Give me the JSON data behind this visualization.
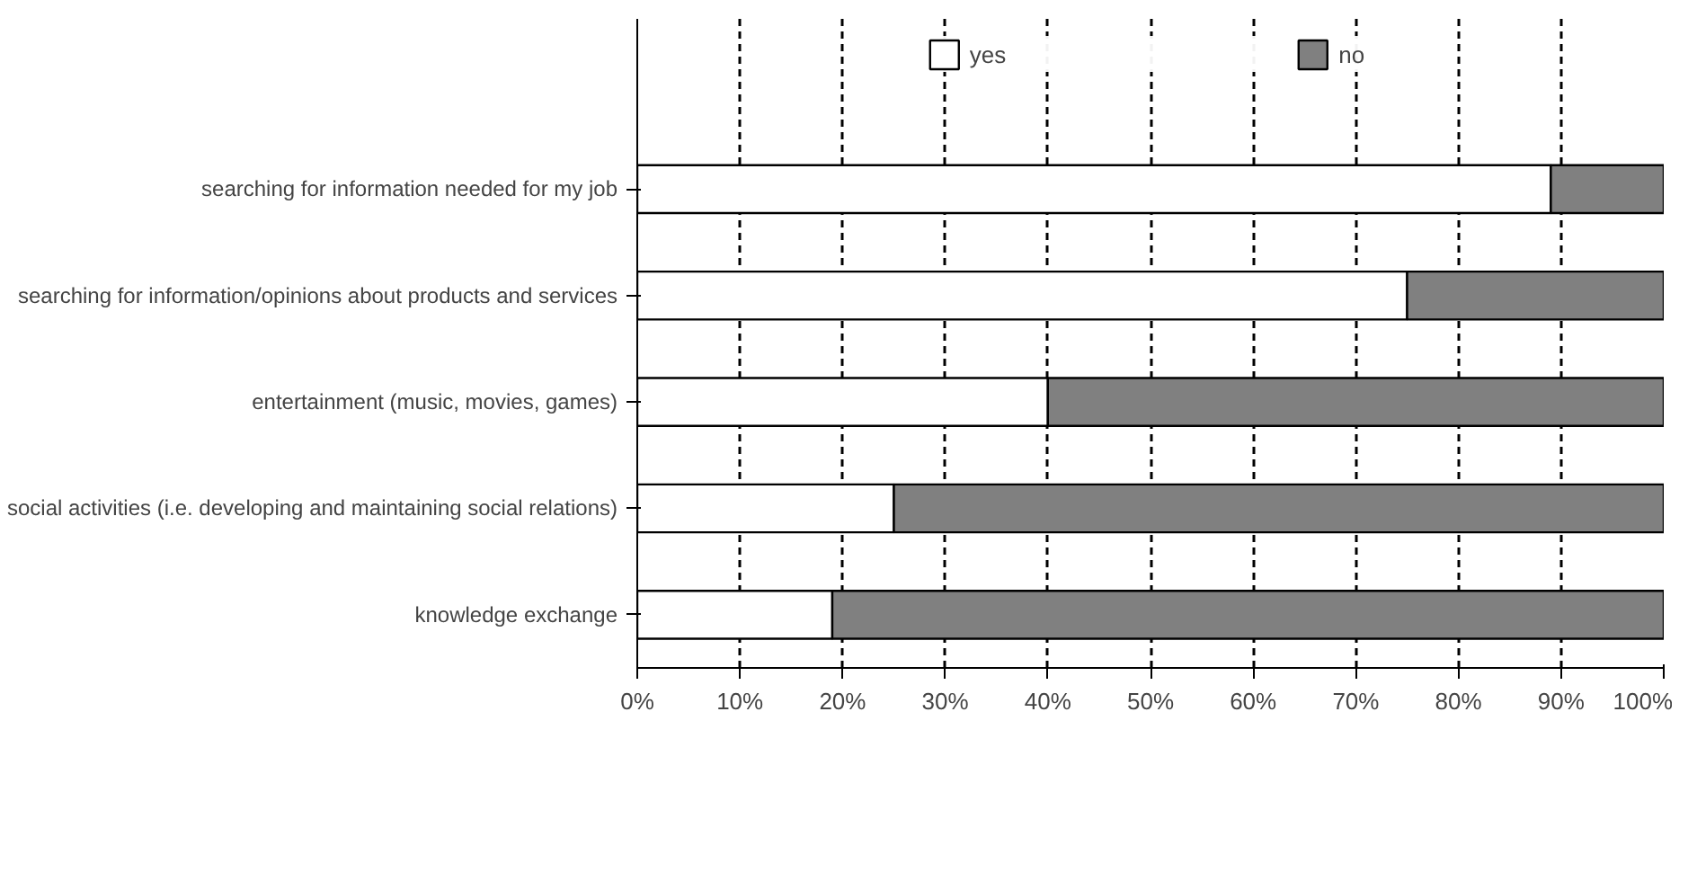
{
  "chart_data": {
    "type": "bar",
    "orientation": "horizontal",
    "stacked": true,
    "categories": [
      "searching for information needed for my job",
      "searching for information/opinions about products and services",
      "entertainment (music, movies, games)",
      "social activities (i.e. developing and maintaining social relations)",
      "knowledge exchange"
    ],
    "series": [
      {
        "name": "yes",
        "color": "#ffffff",
        "values": [
          89,
          75,
          40,
          25,
          19
        ]
      },
      {
        "name": "no",
        "color": "#808080",
        "values": [
          11,
          25,
          60,
          75,
          81
        ]
      }
    ],
    "xlim": [
      0,
      100
    ],
    "xticks": [
      {
        "value": 0,
        "label": "0%"
      },
      {
        "value": 10,
        "label": "10%"
      },
      {
        "value": 20,
        "label": "20%"
      },
      {
        "value": 30,
        "label": "30%"
      },
      {
        "value": 40,
        "label": "40%"
      },
      {
        "value": 50,
        "label": "50%"
      },
      {
        "value": 60,
        "label": "60%"
      },
      {
        "value": 70,
        "label": "70%"
      },
      {
        "value": 80,
        "label": "80%"
      },
      {
        "value": 90,
        "label": "90%"
      },
      {
        "value": 100,
        "label": "100%"
      }
    ],
    "grid": "x",
    "legend": "top"
  }
}
